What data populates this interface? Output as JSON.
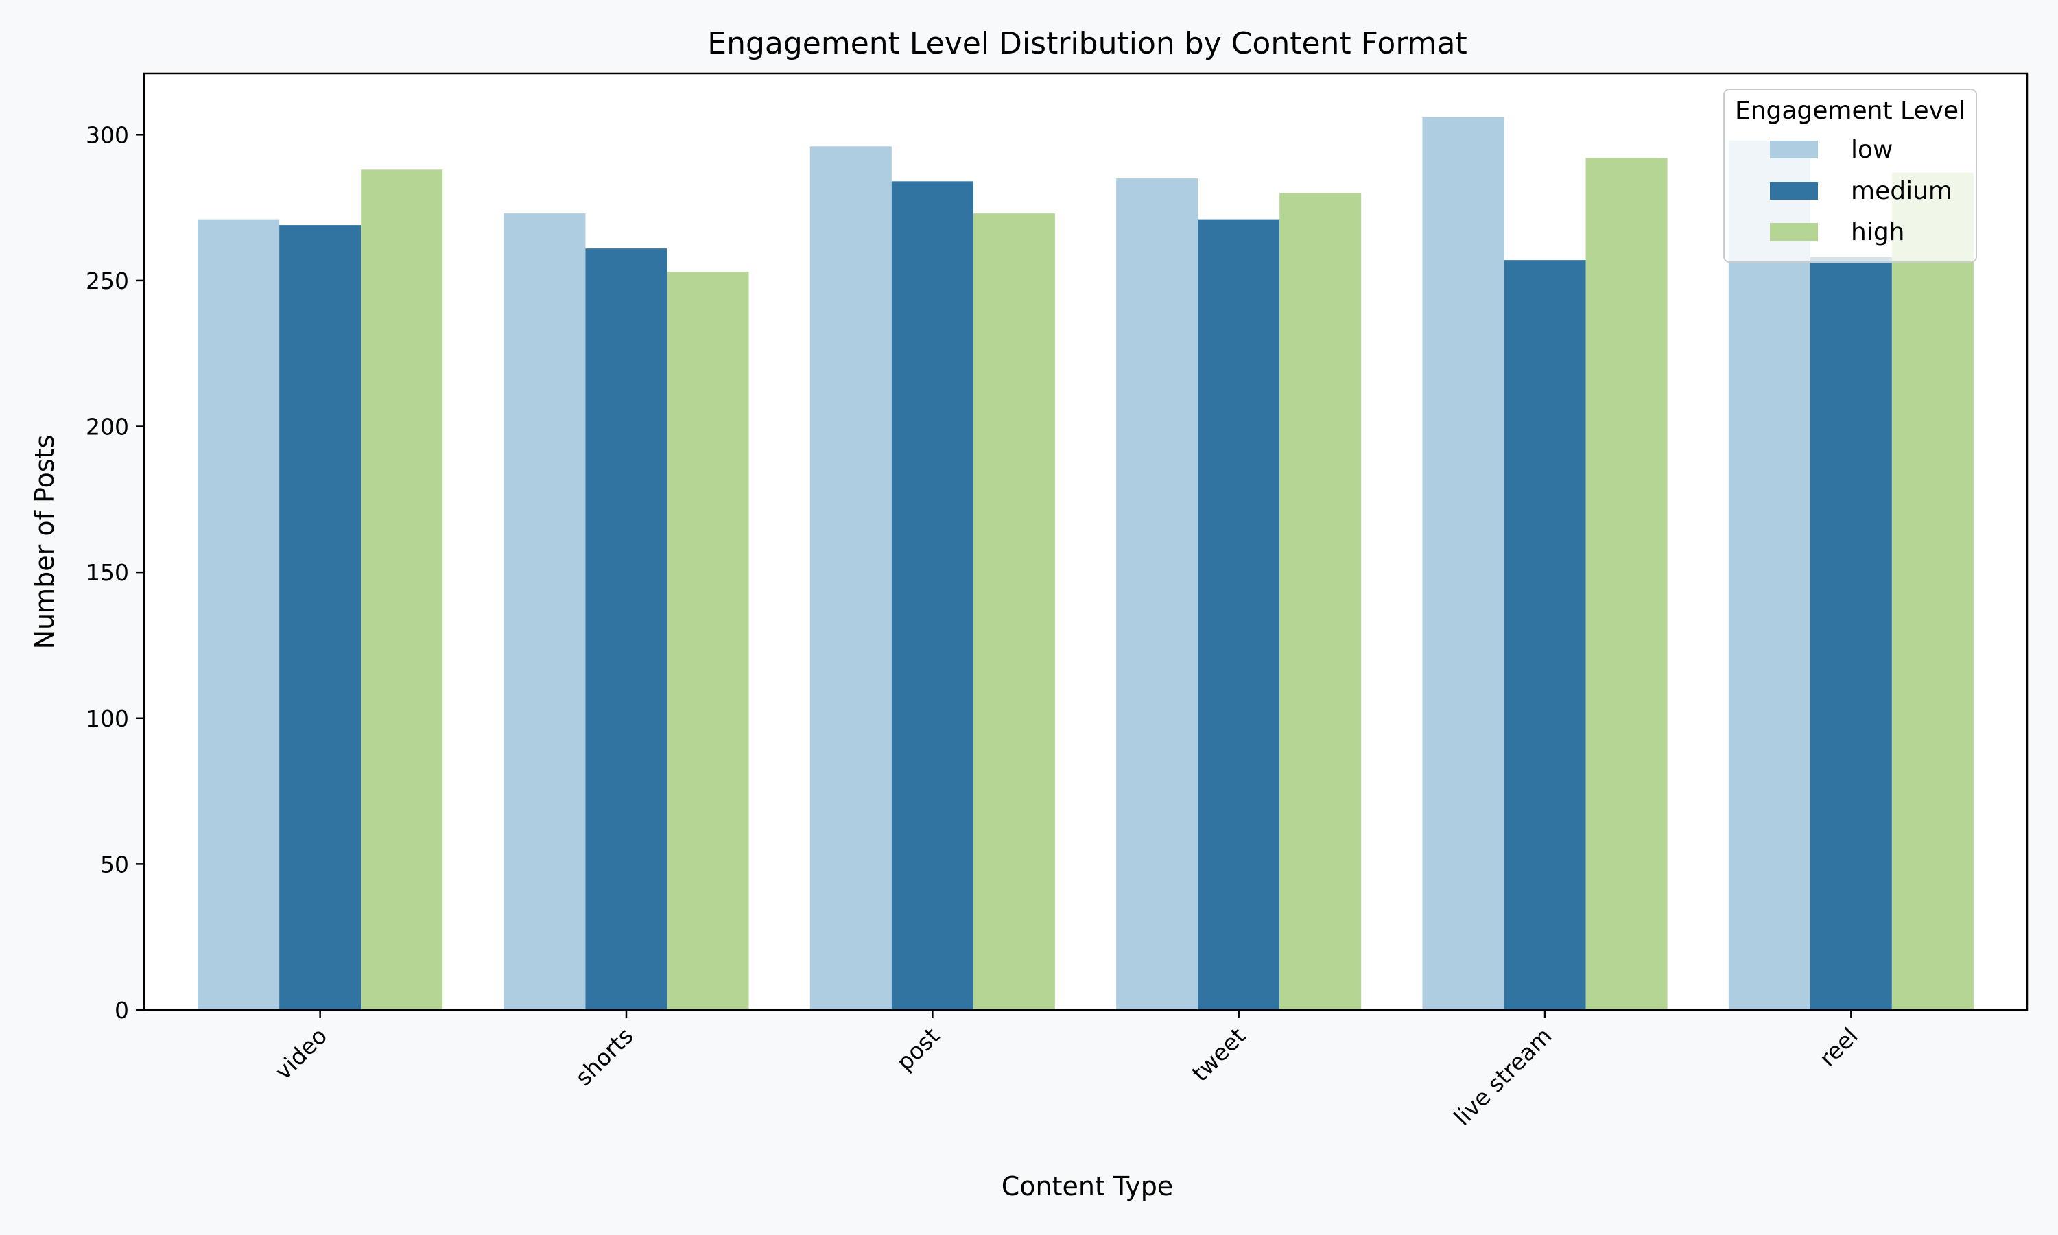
{
  "chart_data": {
    "type": "bar",
    "title": "Engagement Level Distribution by Content Format",
    "xlabel": "Content Type",
    "ylabel": "Number of Posts",
    "categories": [
      "video",
      "shorts",
      "post",
      "tweet",
      "live stream",
      "reel"
    ],
    "series": [
      {
        "name": "low",
        "color": "#aecde0",
        "values": [
          271,
          273,
          296,
          285,
          306,
          298
        ]
      },
      {
        "name": "medium",
        "color": "#3174a1",
        "values": [
          269,
          261,
          284,
          271,
          257,
          258
        ]
      },
      {
        "name": "high",
        "color": "#b4d593",
        "values": [
          288,
          253,
          273,
          280,
          292,
          287
        ]
      }
    ],
    "ylim": [
      0,
      321
    ],
    "yticks": [
      0,
      50,
      100,
      150,
      200,
      250,
      300
    ],
    "grid": false,
    "legend": {
      "title": "Engagement Level",
      "placement": "top-right"
    }
  }
}
